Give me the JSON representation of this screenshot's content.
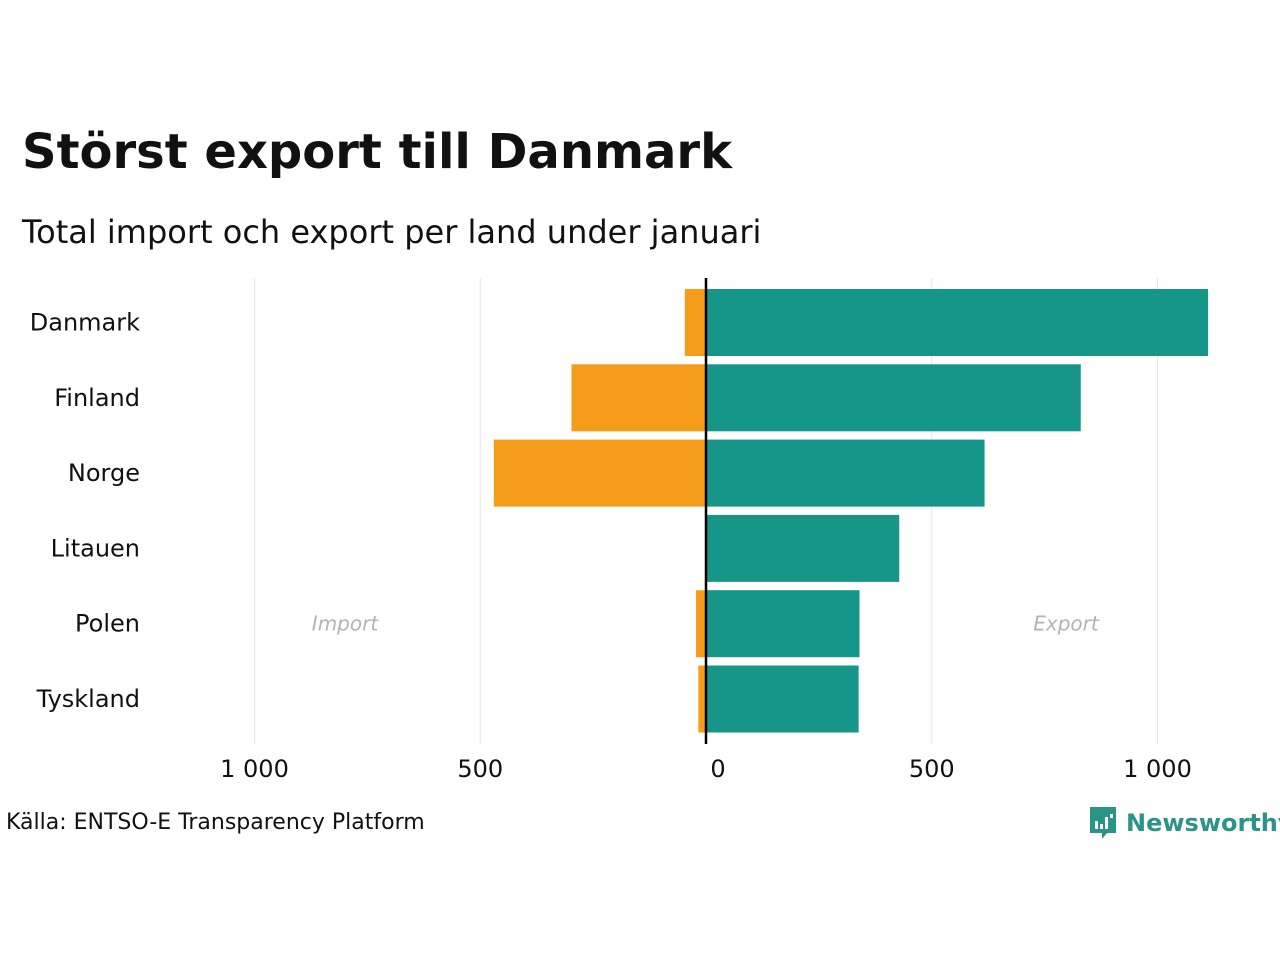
{
  "title": "Störst export till Danmark",
  "subtitle": "Total import och export per land under januari",
  "source": "Källa: ENTSO-E Transparency Platform",
  "brand": {
    "name": "Newsworthy",
    "color": "#2b9488"
  },
  "colors": {
    "import": "#f59c1a",
    "export": "#159688",
    "grid": "#e6e6e6",
    "zero_line": "#000000",
    "side_label": "#b0b3bd"
  },
  "chart_data": {
    "type": "bar",
    "orientation": "horizontal-diverging",
    "title": "Störst export till Danmark",
    "subtitle": "Total import och export per land under januari",
    "categories": [
      "Danmark",
      "Finland",
      "Norge",
      "Litauen",
      "Polen",
      "Tyskland"
    ],
    "series": [
      {
        "name": "Import",
        "values": [
          47,
          298,
          470,
          0,
          22,
          17
        ]
      },
      {
        "name": "Export",
        "values": [
          1112,
          830,
          617,
          428,
          340,
          338
        ]
      }
    ],
    "import_label": "Import",
    "export_label": "Export",
    "xlim": [
      -1000,
      1000
    ],
    "ticks": [
      {
        "value": -1000,
        "label": "1 000"
      },
      {
        "value": -500,
        "label": "500"
      },
      {
        "value": 0,
        "label": "0"
      },
      {
        "value": 500,
        "label": "500"
      },
      {
        "value": 1000,
        "label": "1 000"
      }
    ],
    "grid": true,
    "legend": "none"
  }
}
